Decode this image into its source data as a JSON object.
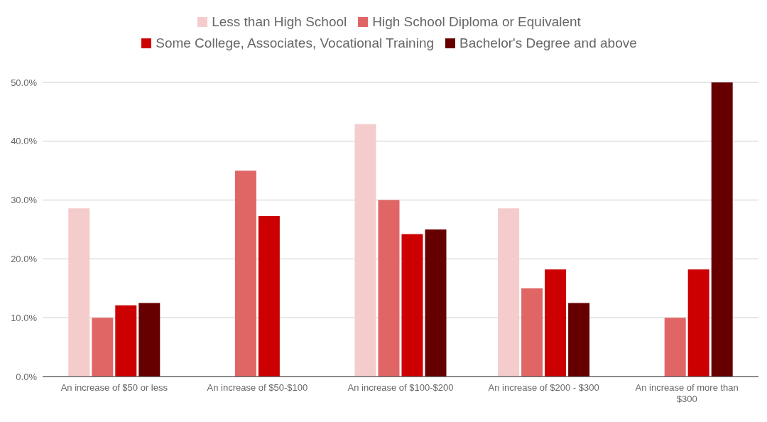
{
  "chart_data": {
    "type": "bar",
    "categories": [
      "An increase of $50 or less",
      "An increase of $50-$100",
      "An increase of $100-$200",
      "An increase of $200 - $300",
      "An increase of more than $300"
    ],
    "series": [
      {
        "name": "Less than High School",
        "color": "#f4cccc",
        "values": [
          28.6,
          0,
          42.9,
          28.6,
          0
        ]
      },
      {
        "name": "High School Diploma or Equivalent",
        "color": "#e06666",
        "values": [
          10.0,
          35.0,
          30.0,
          15.0,
          10.0
        ]
      },
      {
        "name": "Some College, Associates, Vocational Training",
        "color": "#cc0000",
        "values": [
          12.1,
          27.3,
          24.2,
          18.2,
          18.2
        ]
      },
      {
        "name": "Bachelor's Degree and above",
        "color": "#660000",
        "values": [
          12.5,
          0,
          25.0,
          12.5,
          50.0
        ]
      }
    ],
    "ylim": [
      0,
      50
    ],
    "yticks": [
      {
        "value": 0,
        "label": "0.0%"
      },
      {
        "value": 10,
        "label": "10.0%"
      },
      {
        "value": 20,
        "label": "20.0%"
      },
      {
        "value": 30,
        "label": "30.0%"
      },
      {
        "value": 40,
        "label": "40.0%"
      },
      {
        "value": 50,
        "label": "50.0%"
      }
    ],
    "grid": "y",
    "legend": "top"
  }
}
